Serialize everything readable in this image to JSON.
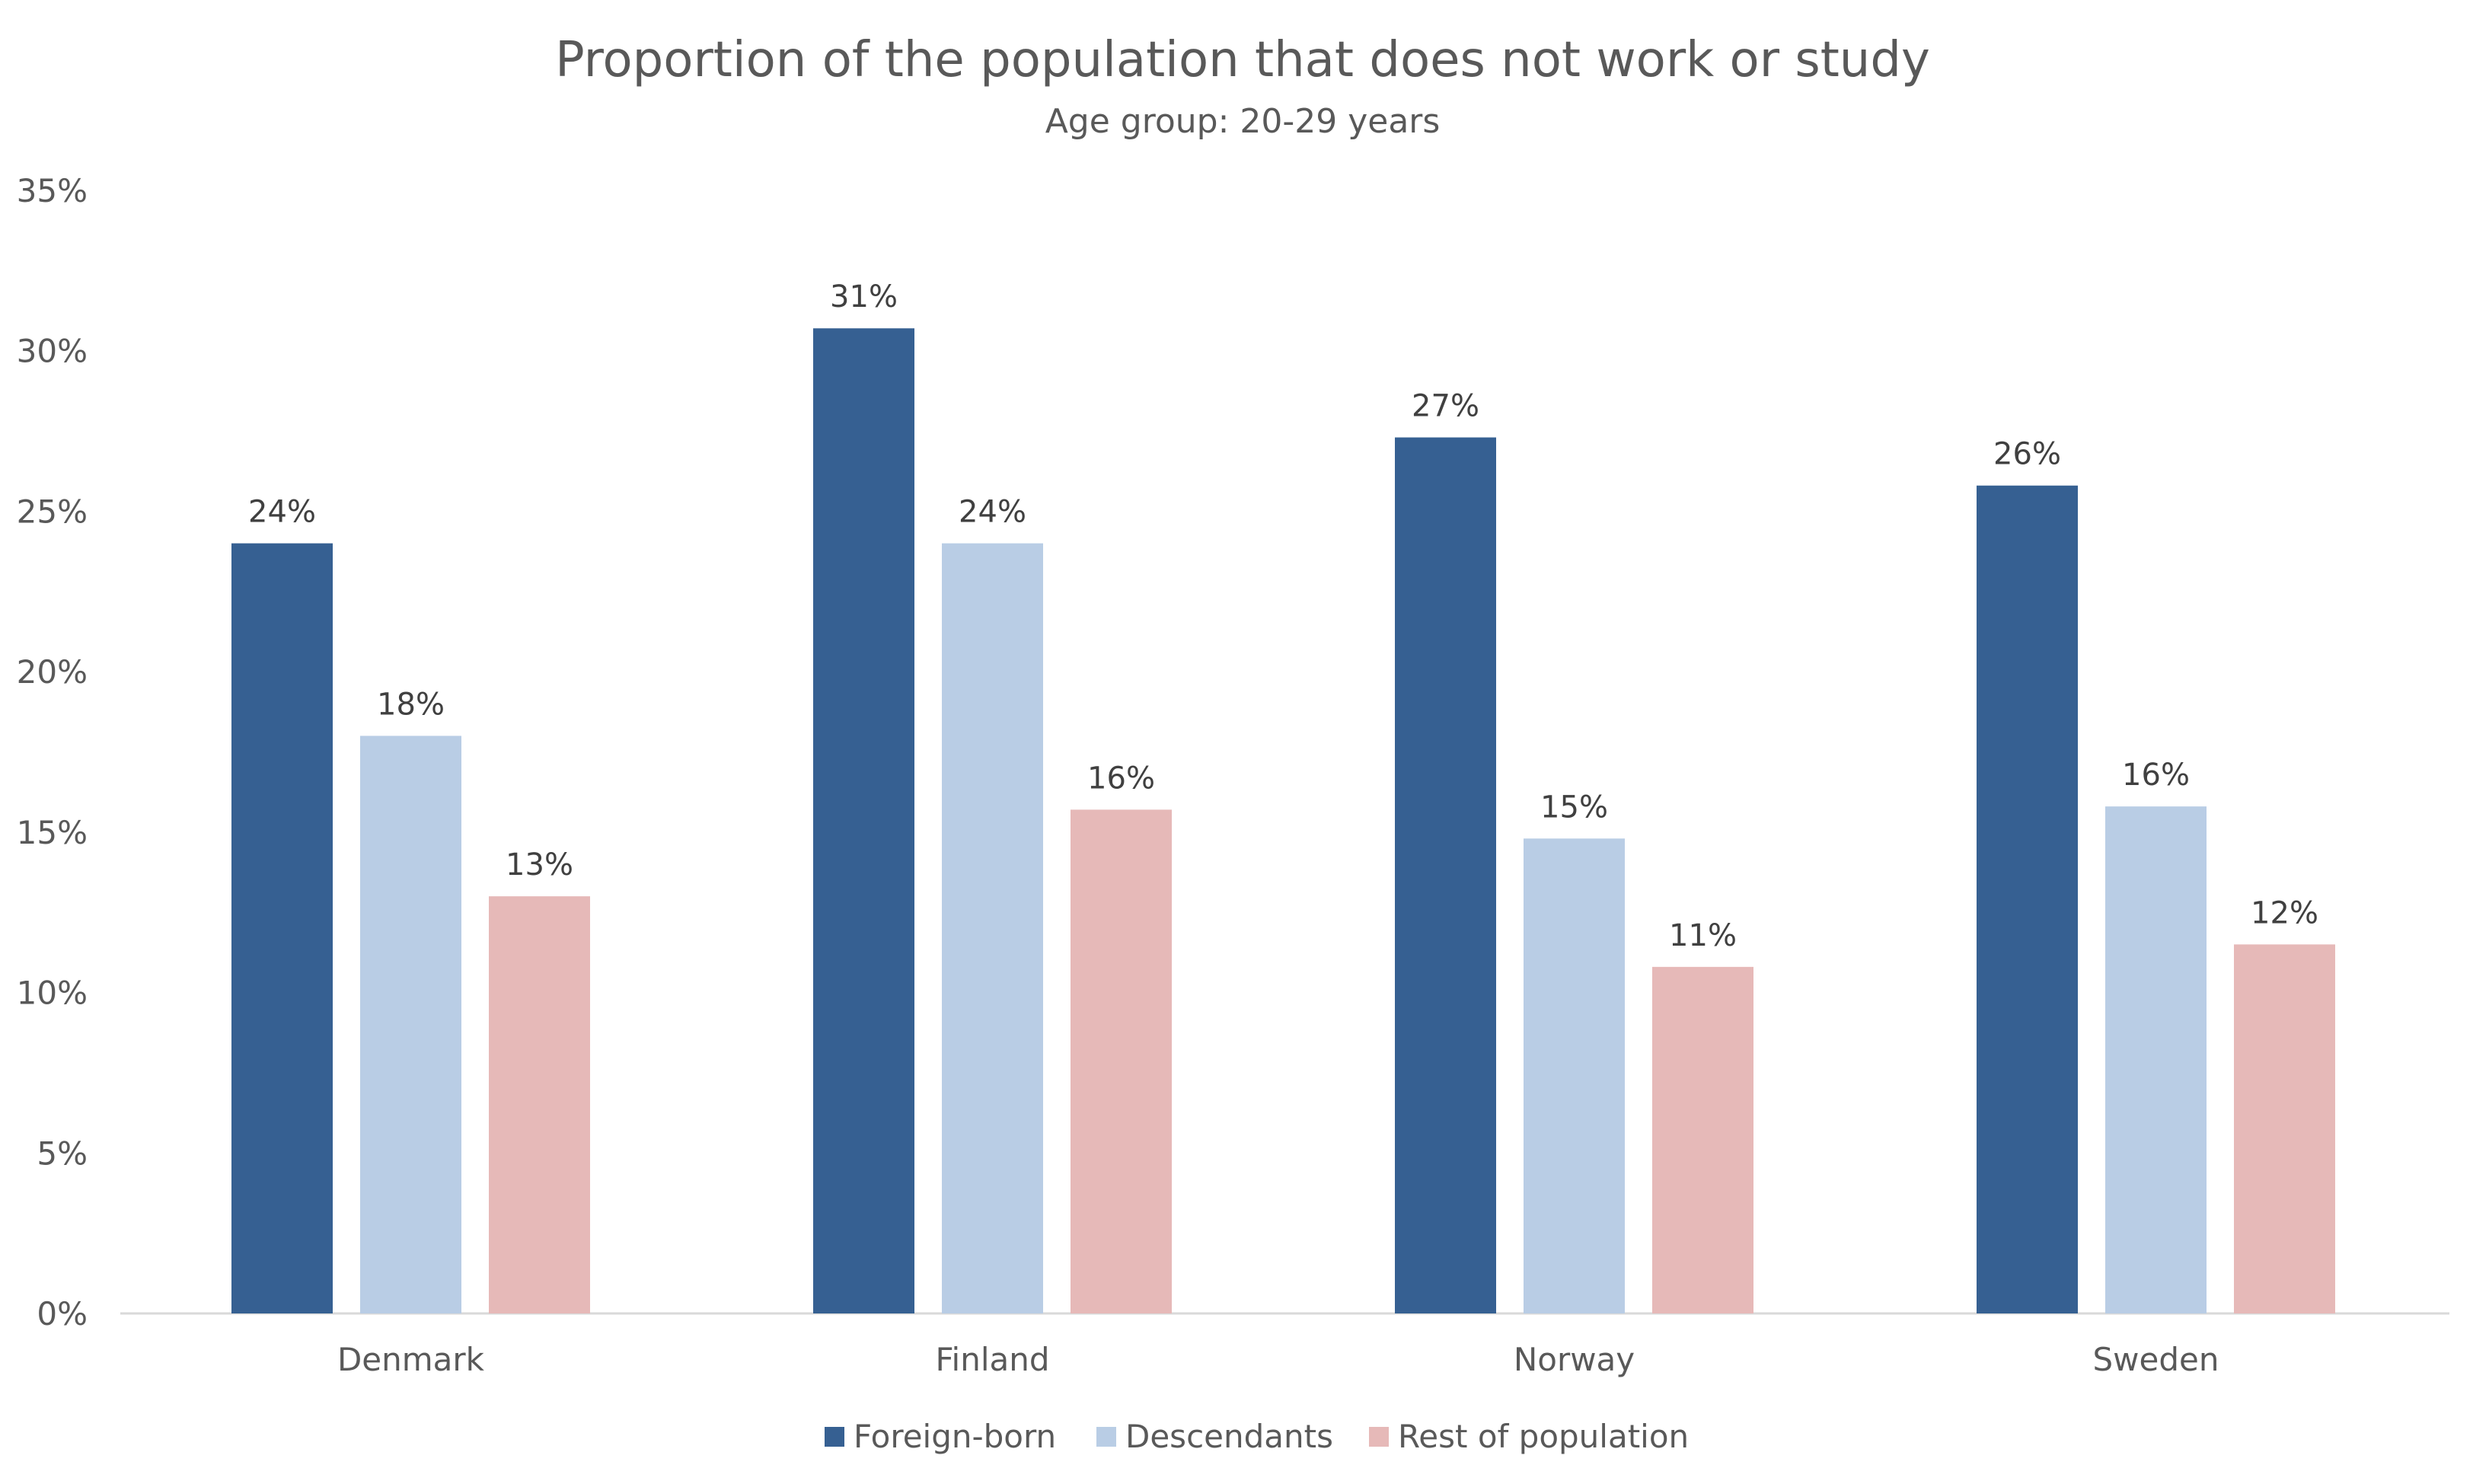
{
  "chart_data": {
    "type": "bar",
    "title": "Proportion of the population that does not work or study",
    "subtitle": "Age group: 20-29 years",
    "xlabel": "",
    "ylabel": "",
    "ylim": [
      0,
      35
    ],
    "yticks": [
      "0%",
      "5%",
      "10%",
      "15%",
      "20%",
      "25%",
      "30%",
      "35%"
    ],
    "ytick_values": [
      0,
      5,
      10,
      15,
      20,
      25,
      30,
      35
    ],
    "grid": false,
    "legend_position": "bottom",
    "categories": [
      "Denmark",
      "Finland",
      "Norway",
      "Sweden"
    ],
    "series": [
      {
        "name": "Foreign-born",
        "color": "#366092",
        "values": [
          24.0,
          30.7,
          27.3,
          25.8
        ],
        "labels": [
          "24%",
          "31%",
          "27%",
          "26%"
        ]
      },
      {
        "name": "Descendants",
        "color": "#B9CDE5",
        "values": [
          18.0,
          24.0,
          14.8,
          15.8
        ],
        "labels": [
          "18%",
          "24%",
          "15%",
          "16%"
        ]
      },
      {
        "name": "Rest of population",
        "color": "#E6B9B8",
        "values": [
          13.0,
          15.7,
          10.8,
          11.5
        ],
        "labels": [
          "13%",
          "16%",
          "11%",
          "12%"
        ]
      }
    ]
  }
}
